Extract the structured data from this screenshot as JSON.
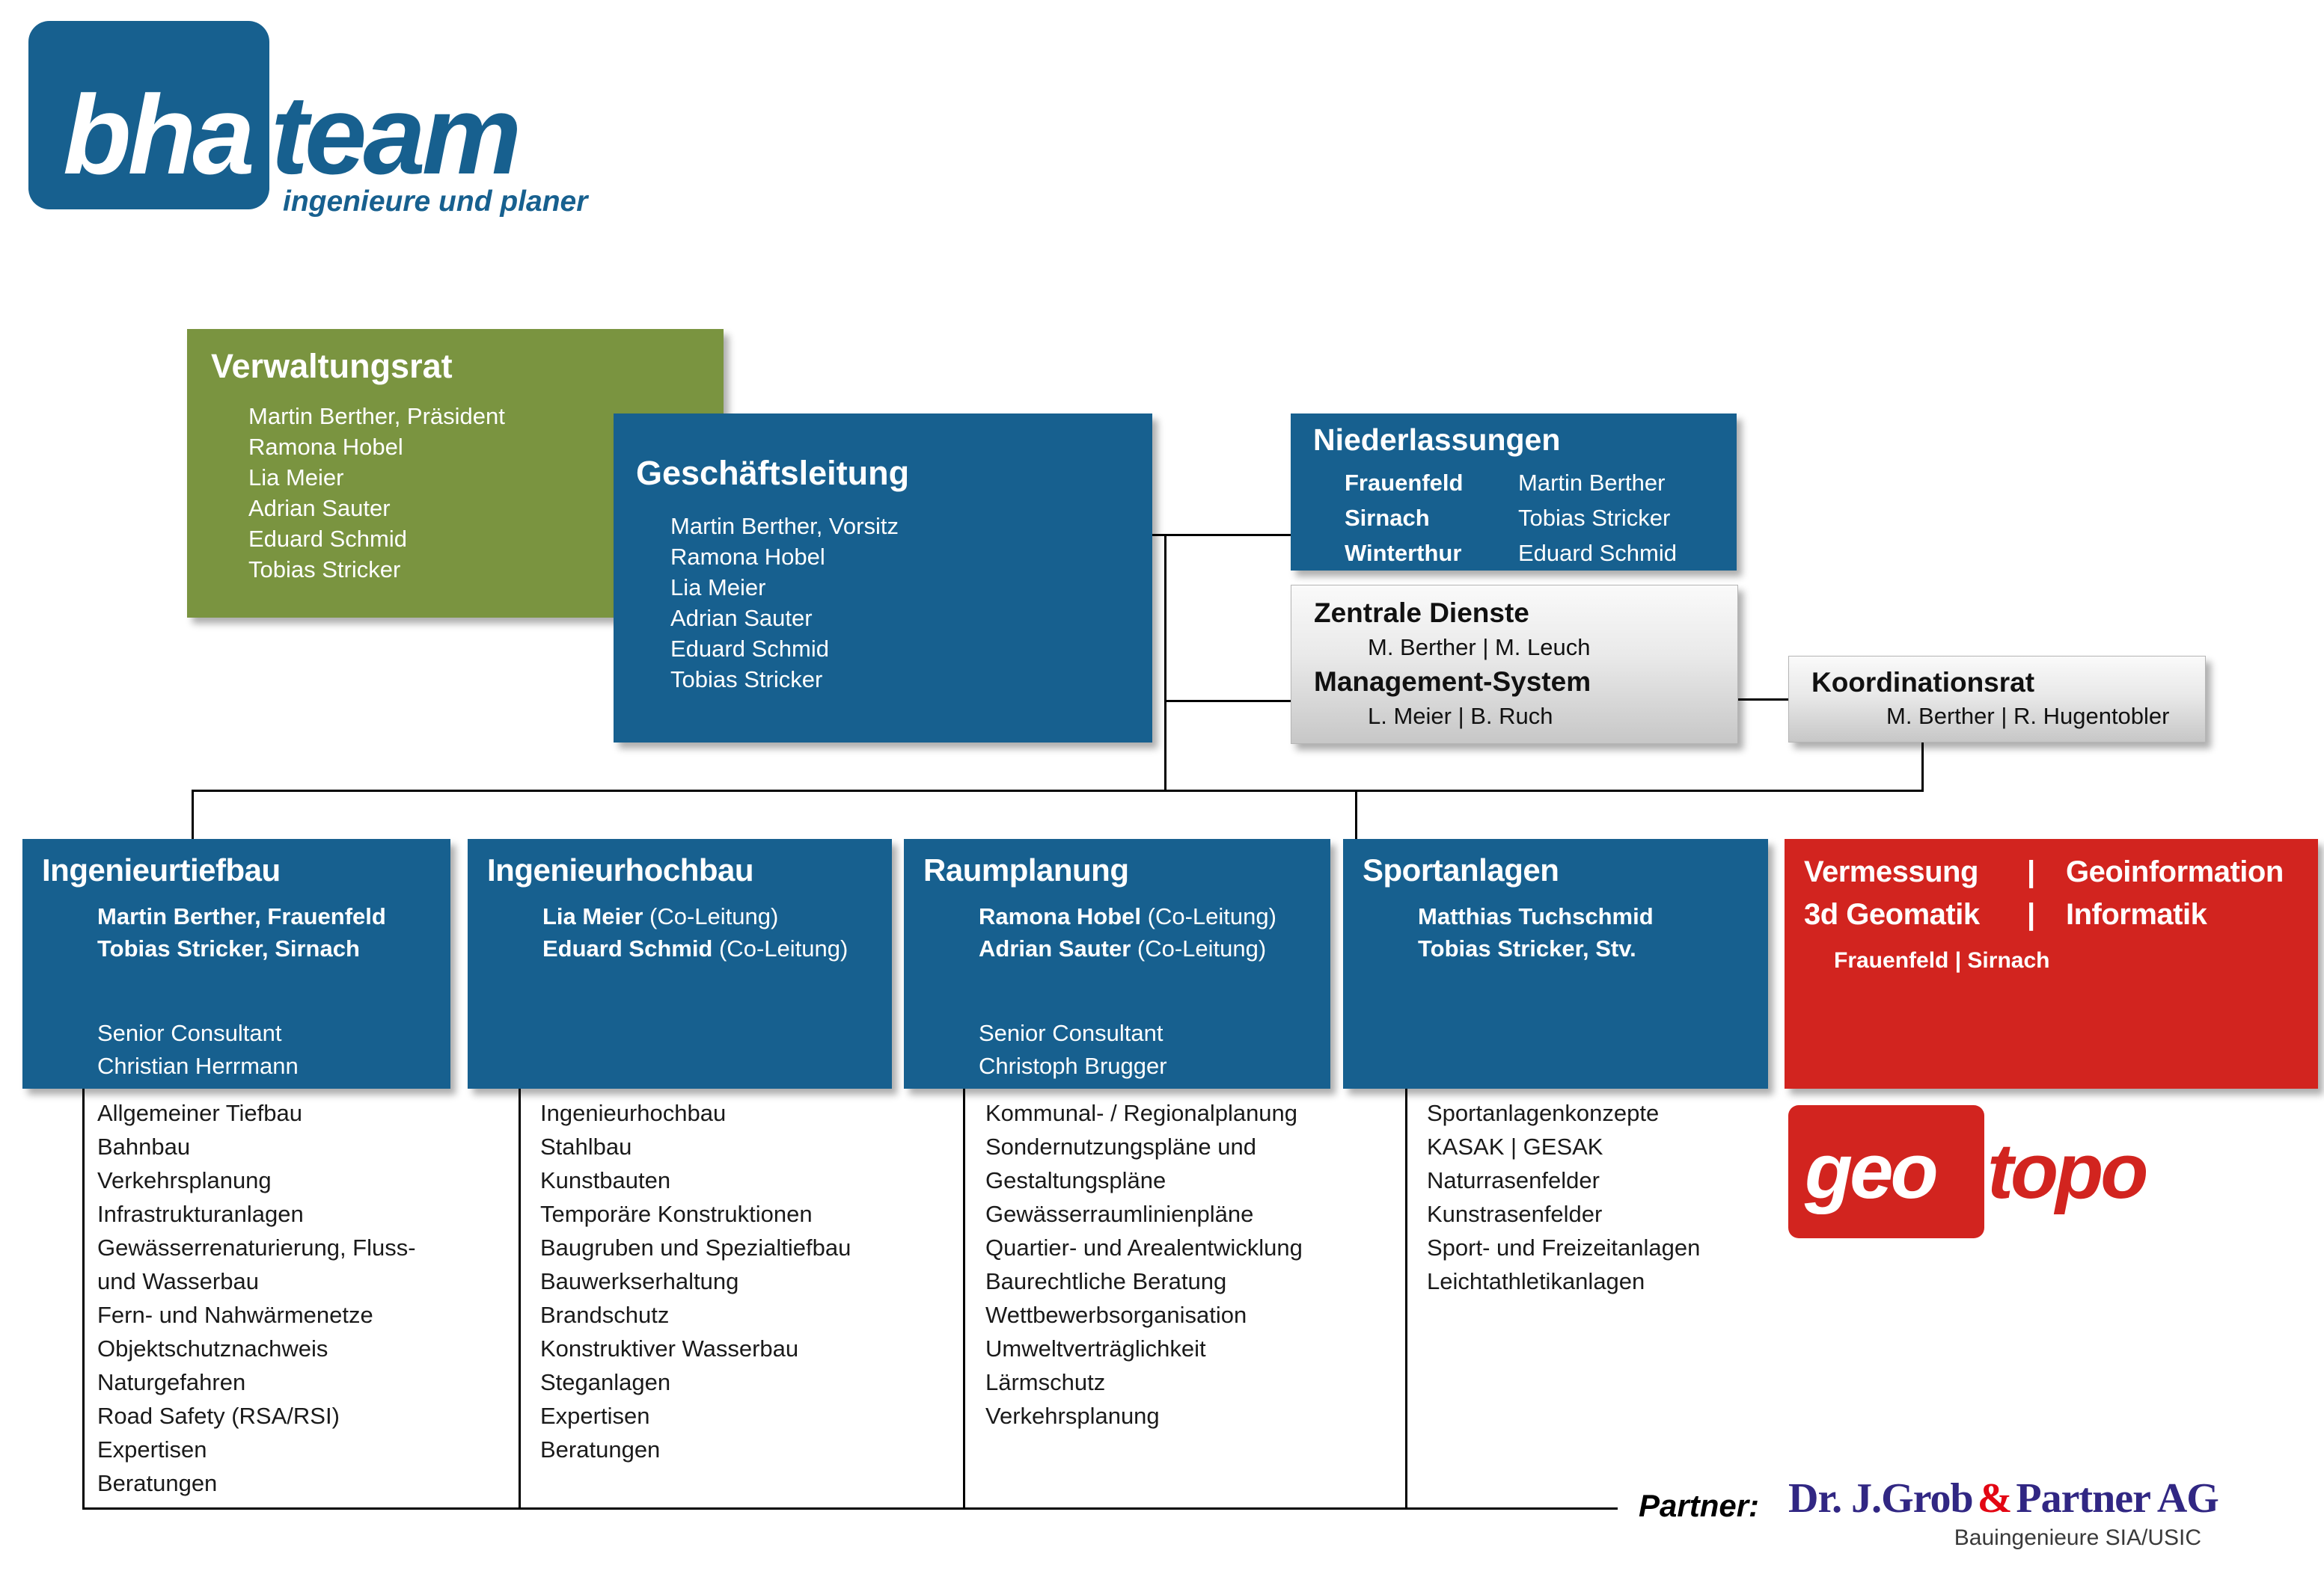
{
  "brand": {
    "blue": "#17608f",
    "green": "#7a9440",
    "red": "#d2241f",
    "partner_navy": "#312783",
    "partner_red": "#e30613"
  },
  "logo": {
    "part1": "bha",
    "part2": "team",
    "tagline": "ingenieure und planer"
  },
  "verwaltungsrat": {
    "title": "Verwaltungsrat",
    "members": [
      "Martin Berther, Präsident",
      "Ramona Hobel",
      "Lia Meier",
      "Adrian Sauter",
      "Eduard Schmid",
      "Tobias Stricker"
    ]
  },
  "geschaeftsleitung": {
    "title": "Geschäftsleitung",
    "members": [
      "Martin Berther, Vorsitz",
      "Ramona Hobel",
      "Lia Meier",
      "Adrian Sauter",
      "Eduard Schmid",
      "Tobias Stricker"
    ]
  },
  "niederlassungen": {
    "title": "Niederlassungen",
    "rows": [
      {
        "location": "Frauenfeld",
        "person": "Martin Berther"
      },
      {
        "location": "Sirnach",
        "person": "Tobias Stricker"
      },
      {
        "location": "Winterthur",
        "person": "Eduard Schmid"
      }
    ]
  },
  "zentrale_dienste": {
    "title": "Zentrale Dienste",
    "members": "M. Berther | M. Leuch"
  },
  "management_system": {
    "title": "Management-System",
    "members": "L. Meier | B. Ruch"
  },
  "koordinationsrat": {
    "title": "Koordinationsrat",
    "members": "M. Berther | R. Hugentobler"
  },
  "departments": [
    {
      "title": "Ingenieurtiefbau",
      "leaders": [
        {
          "bold": "Martin Berther, Frauenfeld",
          "normal": ""
        },
        {
          "bold": "Tobias Stricker, Sirnach",
          "normal": ""
        }
      ],
      "consultants": [
        "Senior Consultant",
        "Christian Herrmann"
      ],
      "services": [
        "Allgemeiner Tiefbau",
        "Bahnbau",
        "Verkehrsplanung",
        "Infrastrukturanlagen",
        "Gewässerrenaturierung, Fluss-",
        "und Wasserbau",
        "Fern- und Nahwärmenetze",
        "Objektschutznachweis",
        "Naturgefahren",
        "Road Safety (RSA/RSI)",
        "Expertisen",
        "Beratungen"
      ]
    },
    {
      "title": "Ingenieurhochbau",
      "leaders": [
        {
          "bold": "Lia Meier",
          "normal": " (Co-Leitung)"
        },
        {
          "bold": "Eduard Schmid",
          "normal": " (Co-Leitung)"
        }
      ],
      "consultants": [],
      "services": [
        "Ingenieurhochbau",
        "Stahlbau",
        "Kunstbauten",
        "Temporäre Konstruktionen",
        "Baugruben und Spezialtiefbau",
        "Bauwerkserhaltung",
        "Brandschutz",
        "Konstruktiver Wasserbau",
        "Steganlagen",
        "Expertisen",
        "Beratungen"
      ]
    },
    {
      "title": "Raumplanung",
      "leaders": [
        {
          "bold": "Ramona Hobel",
          "normal": " (Co-Leitung)"
        },
        {
          "bold": "Adrian Sauter",
          "normal": " (Co-Leitung)"
        }
      ],
      "consultants": [
        "Senior Consultant",
        "Christoph Brugger"
      ],
      "services": [
        "Kommunal- / Regionalplanung",
        "Sondernutzungspläne und",
        "Gestaltungspläne",
        "Gewässerraumlinienpläne",
        "Quartier- und Arealentwicklung",
        "Baurechtliche Beratung",
        "Wettbewerbsorganisation",
        "Umweltverträglichkeit",
        "Lärmschutz",
        "Verkehrsplanung"
      ]
    },
    {
      "title": "Sportanlagen",
      "leaders": [
        {
          "bold": "Matthias Tuchschmid",
          "normal": ""
        },
        {
          "bold": "Tobias Stricker, Stv.",
          "normal": ""
        }
      ],
      "consultants": [],
      "services": [
        "Sportanlagenkonzepte",
        "KASAK | GESAK",
        "Naturrasenfelder",
        "Kunstrasenfelder",
        "Sport- und Freizeitanlagen",
        "Leichtathletikanlagen"
      ]
    },
    {
      "title_lines": [
        {
          "left": "Vermessung",
          "sep": "|",
          "right": "Geoinformation"
        },
        {
          "left": "3d Geomatik",
          "sep": "|",
          "right": "Informatik"
        }
      ],
      "locations": "Frauenfeld  |  Sirnach"
    }
  ],
  "geotopo": {
    "part1": "geo",
    "part2": "topo"
  },
  "partner": {
    "label": "Partner:",
    "name_prefix": "Dr. J.Grob",
    "ampersand": "&",
    "name_suffix": "Partner AG",
    "subtitle": "Bauingenieure  SIA/USIC"
  }
}
